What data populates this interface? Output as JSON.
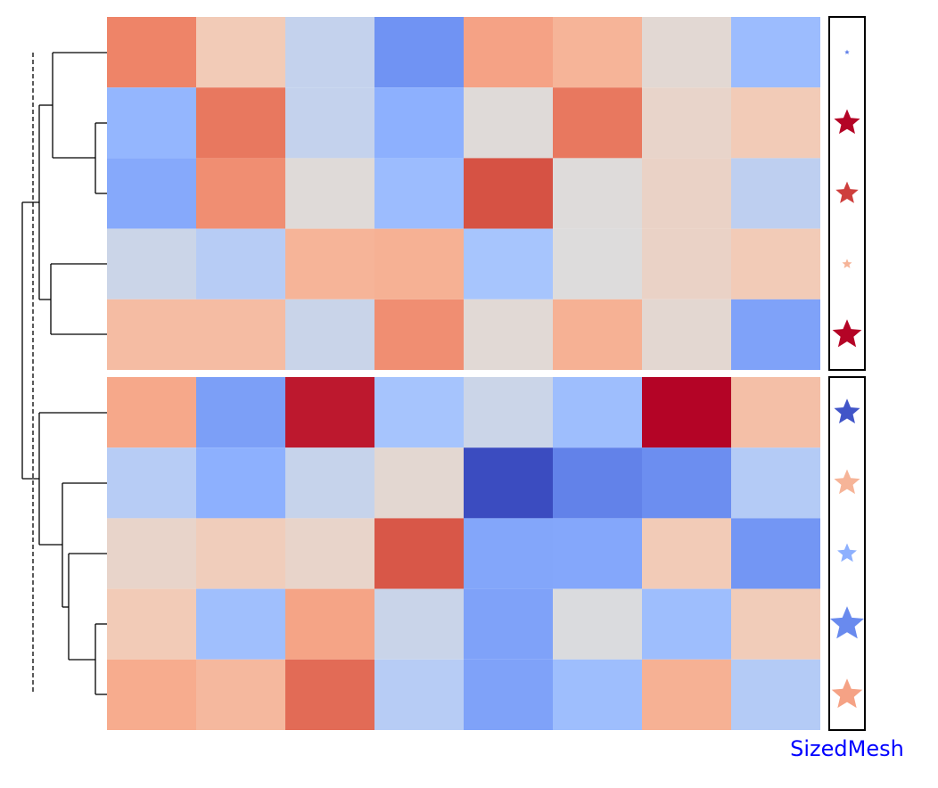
{
  "chart_data": {
    "type": "heatmap",
    "colormap": "coolwarm",
    "vlim": [
      -1,
      1
    ],
    "row_groups": [
      5,
      5
    ],
    "values": [
      [
        0.6,
        0.2,
        -0.1,
        -0.6,
        0.45,
        0.35,
        0.05,
        -0.3
      ],
      [
        -0.35,
        0.65,
        -0.1,
        -0.4,
        0.02,
        0.65,
        0.1,
        0.2
      ],
      [
        -0.45,
        0.55,
        0.02,
        -0.3,
        0.8,
        0.01,
        0.12,
        -0.12
      ],
      [
        -0.07,
        -0.15,
        0.35,
        0.37,
        -0.22,
        0,
        0.12,
        0.2
      ],
      [
        0.3,
        0.3,
        -0.08,
        0.55,
        0.04,
        0.37,
        0.06,
        -0.5
      ],
      [
        0.42,
        -0.52,
        0.95,
        -0.23,
        -0.07,
        -0.28,
        1.0,
        0.28
      ],
      [
        -0.15,
        -0.4,
        -0.09,
        0.06,
        -1.0,
        -0.7,
        -0.63,
        -0.16
      ],
      [
        0.1,
        0.18,
        0.1,
        0.78,
        -0.47,
        -0.46,
        0.2,
        -0.58
      ],
      [
        0.2,
        -0.27,
        0.44,
        -0.08,
        -0.5,
        -0.01,
        -0.28,
        0.19
      ],
      [
        0.4,
        0.32,
        0.7,
        -0.15,
        -0.5,
        -0.28,
        0.37,
        -0.16
      ]
    ],
    "mesh": {
      "label": "SizedMesh",
      "label_color": "#0000ff",
      "colors": [
        -0.7,
        1.0,
        0.85,
        0.35,
        1.0,
        -0.95,
        0.35,
        -0.4,
        -0.65,
        0.45
      ],
      "sizes": [
        0.05,
        0.7,
        0.6,
        0.2,
        0.8,
        0.7,
        0.7,
        0.5,
        0.95,
        0.85
      ]
    }
  }
}
